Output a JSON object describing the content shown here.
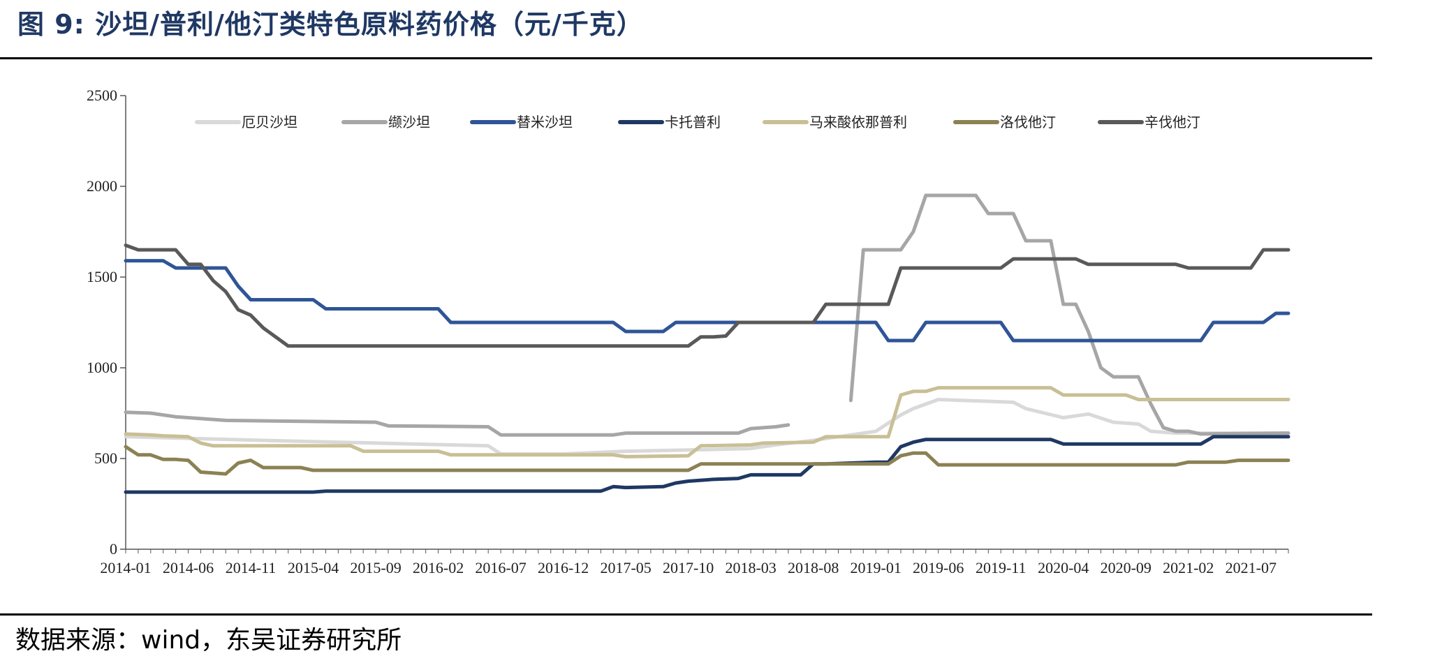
{
  "figure": {
    "title": "图 9:  沙坦/普利/他汀类特色原料药价格（元/千克）",
    "source": "数据来源：wind，东吴证券研究所"
  },
  "chart_data": {
    "type": "line",
    "title": "",
    "xlabel": "",
    "ylabel": "",
    "ylim": [
      0,
      2500
    ],
    "yticks": [
      0,
      500,
      1000,
      1500,
      2000,
      2500
    ],
    "x_tick_labels": [
      "2014-01",
      "2014-06",
      "2014-11",
      "2015-04",
      "2015-09",
      "2016-02",
      "2016-07",
      "2016-12",
      "2017-05",
      "2017-10",
      "2018-03",
      "2018-08",
      "2019-01",
      "2019-06",
      "2019-11",
      "2020-04",
      "2020-09",
      "2021-02",
      "2021-07"
    ],
    "x_range": [
      "2014-01",
      "2021-10"
    ],
    "grid": false,
    "legend": "top, inside plot, single row",
    "series": [
      {
        "name": "厄贝沙坦",
        "color": "#D9D9D9",
        "points": [
          [
            "2014-01",
            620
          ],
          [
            "2014-12",
            600
          ],
          [
            "2015-12",
            580
          ],
          [
            "2016-06",
            570
          ],
          [
            "2016-07",
            525
          ],
          [
            "2016-12",
            525
          ],
          [
            "2017-05",
            540
          ],
          [
            "2017-12",
            550
          ],
          [
            "2018-03",
            555
          ],
          [
            "2018-05",
            575
          ],
          [
            "2018-08",
            600
          ],
          [
            "2018-10",
            620
          ],
          [
            "2019-01",
            650
          ],
          [
            "2019-03",
            740
          ],
          [
            "2019-04",
            775
          ],
          [
            "2019-06",
            825
          ],
          [
            "2019-12",
            810
          ],
          [
            "2020-01",
            775
          ],
          [
            "2020-04",
            725
          ],
          [
            "2020-06",
            745
          ],
          [
            "2020-08",
            700
          ],
          [
            "2020-10",
            690
          ],
          [
            "2020-11",
            650
          ],
          [
            "2021-01",
            640
          ],
          [
            "2021-10",
            640
          ]
        ]
      },
      {
        "name": "缬沙坦",
        "color": "#A6A6A6",
        "points": [
          [
            "2014-01",
            755
          ],
          [
            "2014-03",
            750
          ],
          [
            "2014-05",
            730
          ],
          [
            "2014-09",
            710
          ],
          [
            "2015-09",
            700
          ],
          [
            "2015-10",
            680
          ],
          [
            "2016-06",
            675
          ],
          [
            "2016-07",
            630
          ],
          [
            "2017-04",
            630
          ],
          [
            "2017-05",
            640
          ],
          [
            "2018-02",
            640
          ],
          [
            "2018-03",
            665
          ],
          [
            "2018-05",
            675
          ],
          [
            "2018-06",
            685
          ],
          [
            null,
            null
          ],
          [
            "2018-11",
            820
          ],
          [
            "2018-12",
            1650
          ],
          [
            "2019-03",
            1650
          ],
          [
            "2019-04",
            1750
          ],
          [
            "2019-05",
            1950
          ],
          [
            "2019-09",
            1950
          ],
          [
            "2019-10",
            1850
          ],
          [
            "2019-12",
            1850
          ],
          [
            "2020-01",
            1700
          ],
          [
            "2020-03",
            1700
          ],
          [
            "2020-04",
            1350
          ],
          [
            "2020-05",
            1350
          ],
          [
            "2020-06",
            1200
          ],
          [
            "2020-07",
            1000
          ],
          [
            "2020-08",
            950
          ],
          [
            "2020-10",
            950
          ],
          [
            "2020-11",
            800
          ],
          [
            "2020-12",
            670
          ],
          [
            "2021-01",
            650
          ],
          [
            "2021-02",
            650
          ],
          [
            "2021-03",
            635
          ],
          [
            "2021-10",
            640
          ]
        ]
      },
      {
        "name": "替米沙坦",
        "color": "#2F5597",
        "points": [
          [
            "2014-01",
            1590
          ],
          [
            "2014-04",
            1590
          ],
          [
            "2014-05",
            1550
          ],
          [
            "2014-09",
            1550
          ],
          [
            "2014-10",
            1450
          ],
          [
            "2014-11",
            1375
          ],
          [
            "2015-04",
            1375
          ],
          [
            "2015-05",
            1325
          ],
          [
            "2016-02",
            1325
          ],
          [
            "2016-03",
            1250
          ],
          [
            "2017-04",
            1250
          ],
          [
            "2017-05",
            1200
          ],
          [
            "2017-08",
            1200
          ],
          [
            "2017-09",
            1250
          ],
          [
            "2019-01",
            1250
          ],
          [
            "2019-02",
            1150
          ],
          [
            "2019-04",
            1150
          ],
          [
            "2019-05",
            1250
          ],
          [
            "2019-11",
            1250
          ],
          [
            "2019-12",
            1150
          ],
          [
            "2021-03",
            1150
          ],
          [
            "2021-04",
            1250
          ],
          [
            "2021-08",
            1250
          ],
          [
            "2021-09",
            1300
          ],
          [
            "2021-10",
            1300
          ]
        ]
      },
      {
        "name": "卡托普利",
        "color": "#1F3864",
        "points": [
          [
            "2014-01",
            315
          ],
          [
            "2015-04",
            315
          ],
          [
            "2015-05",
            320
          ],
          [
            "2017-03",
            320
          ],
          [
            "2017-04",
            345
          ],
          [
            "2017-05",
            340
          ],
          [
            "2017-08",
            345
          ],
          [
            "2017-09",
            365
          ],
          [
            "2017-10",
            375
          ],
          [
            "2017-12",
            385
          ],
          [
            "2018-02",
            390
          ],
          [
            "2018-03",
            410
          ],
          [
            "2018-07",
            410
          ],
          [
            "2018-08",
            470
          ],
          [
            "2018-09",
            470
          ],
          [
            "2019-01",
            480
          ],
          [
            "2019-02",
            480
          ],
          [
            "2019-03",
            565
          ],
          [
            "2019-04",
            590
          ],
          [
            "2019-05",
            605
          ],
          [
            "2020-03",
            605
          ],
          [
            "2020-04",
            580
          ],
          [
            "2021-03",
            580
          ],
          [
            "2021-04",
            620
          ],
          [
            "2021-10",
            620
          ]
        ]
      },
      {
        "name": "马来酸依那普利",
        "color": "#C9BF95",
        "points": [
          [
            "2014-01",
            635
          ],
          [
            "2014-03",
            630
          ],
          [
            "2014-04",
            625
          ],
          [
            "2014-06",
            620
          ],
          [
            "2014-07",
            585
          ],
          [
            "2014-08",
            570
          ],
          [
            "2015-07",
            570
          ],
          [
            "2015-08",
            540
          ],
          [
            "2016-02",
            540
          ],
          [
            "2016-03",
            520
          ],
          [
            "2017-04",
            520
          ],
          [
            "2017-05",
            510
          ],
          [
            "2017-10",
            515
          ],
          [
            "2017-11",
            570
          ],
          [
            "2018-03",
            575
          ],
          [
            "2018-04",
            585
          ],
          [
            "2018-08",
            590
          ],
          [
            "2018-09",
            620
          ],
          [
            "2019-02",
            620
          ],
          [
            "2019-03",
            850
          ],
          [
            "2019-04",
            870
          ],
          [
            "2019-05",
            870
          ],
          [
            "2019-06",
            890
          ],
          [
            "2020-03",
            890
          ],
          [
            "2020-04",
            850
          ],
          [
            "2020-09",
            850
          ],
          [
            "2020-10",
            825
          ],
          [
            "2021-10",
            825
          ]
        ]
      },
      {
        "name": "洛伐他汀",
        "color": "#8B8153",
        "points": [
          [
            "2014-01",
            565
          ],
          [
            "2014-02",
            520
          ],
          [
            "2014-03",
            520
          ],
          [
            "2014-04",
            495
          ],
          [
            "2014-05",
            495
          ],
          [
            "2014-06",
            490
          ],
          [
            "2014-07",
            425
          ],
          [
            "2014-08",
            420
          ],
          [
            "2014-09",
            415
          ],
          [
            "2014-10",
            475
          ],
          [
            "2014-11",
            490
          ],
          [
            "2014-12",
            450
          ],
          [
            "2015-03",
            450
          ],
          [
            "2015-04",
            435
          ],
          [
            "2017-10",
            435
          ],
          [
            "2017-11",
            470
          ],
          [
            "2018-08",
            470
          ],
          [
            "2019-02",
            470
          ],
          [
            "2019-03",
            515
          ],
          [
            "2019-04",
            530
          ],
          [
            "2019-05",
            530
          ],
          [
            "2019-06",
            465
          ],
          [
            "2021-01",
            465
          ],
          [
            "2021-02",
            480
          ],
          [
            "2021-05",
            480
          ],
          [
            "2021-06",
            490
          ],
          [
            "2021-10",
            490
          ]
        ]
      },
      {
        "name": "辛伐他汀",
        "color": "#595959",
        "points": [
          [
            "2014-01",
            1675
          ],
          [
            "2014-02",
            1650
          ],
          [
            "2014-05",
            1650
          ],
          [
            "2014-06",
            1570
          ],
          [
            "2014-07",
            1570
          ],
          [
            "2014-08",
            1480
          ],
          [
            "2014-09",
            1420
          ],
          [
            "2014-10",
            1320
          ],
          [
            "2014-11",
            1290
          ],
          [
            "2014-12",
            1220
          ],
          [
            "2015-01",
            1170
          ],
          [
            "2015-02",
            1120
          ],
          [
            "2017-10",
            1120
          ],
          [
            "2017-11",
            1170
          ],
          [
            "2017-12",
            1170
          ],
          [
            "2018-01",
            1175
          ],
          [
            "2018-02",
            1250
          ],
          [
            "2018-08",
            1250
          ],
          [
            "2018-09",
            1350
          ],
          [
            "2019-02",
            1350
          ],
          [
            "2019-03",
            1550
          ],
          [
            "2019-11",
            1550
          ],
          [
            "2019-12",
            1600
          ],
          [
            "2020-05",
            1600
          ],
          [
            "2020-06",
            1570
          ],
          [
            "2021-01",
            1570
          ],
          [
            "2021-02",
            1550
          ],
          [
            "2021-07",
            1550
          ],
          [
            "2021-08",
            1650
          ],
          [
            "2021-10",
            1650
          ]
        ]
      }
    ]
  }
}
